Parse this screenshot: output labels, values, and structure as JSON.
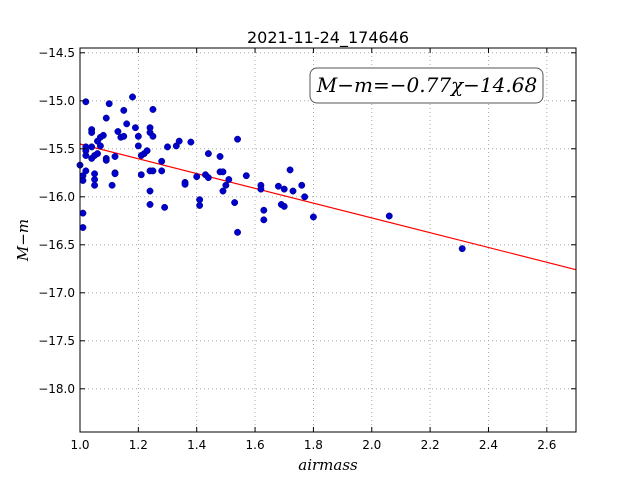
{
  "chart_data": {
    "type": "scatter",
    "title": "2021-11-24_174646",
    "xlabel": "airmass",
    "ylabel": "M−m",
    "xlim": [
      1.0,
      2.7
    ],
    "ylim": [
      -18.45,
      -14.45
    ],
    "y_inverted": true,
    "x_ticks": [
      "1.0",
      "1.2",
      "1.4",
      "1.6",
      "1.8",
      "2.0",
      "2.2",
      "2.4",
      "2.6"
    ],
    "y_ticks": [
      "−14.5",
      "−15.0",
      "−15.5",
      "−16.0",
      "−16.5",
      "−17.0",
      "−17.5",
      "−18.0"
    ],
    "grid": true,
    "annotation": "M−m=−0.77χ−14.68",
    "annotation_position": "top-right",
    "point_color": "#0000cc",
    "line_color": "#ff0000",
    "fit": {
      "slope": -0.77,
      "intercept": -14.68
    },
    "points": [
      [
        1.0,
        -15.67
      ],
      [
        1.01,
        -15.83
      ],
      [
        1.01,
        -15.78
      ],
      [
        1.01,
        -16.17
      ],
      [
        1.01,
        -16.32
      ],
      [
        1.02,
        -15.01
      ],
      [
        1.02,
        -15.48
      ],
      [
        1.02,
        -15.52
      ],
      [
        1.02,
        -15.57
      ],
      [
        1.02,
        -15.73
      ],
      [
        1.04,
        -15.3
      ],
      [
        1.04,
        -15.33
      ],
      [
        1.04,
        -15.48
      ],
      [
        1.04,
        -15.6
      ],
      [
        1.05,
        -15.57
      ],
      [
        1.05,
        -15.82
      ],
      [
        1.05,
        -15.88
      ],
      [
        1.05,
        -15.76
      ],
      [
        1.06,
        -15.42
      ],
      [
        1.06,
        -15.55
      ],
      [
        1.07,
        -15.38
      ],
      [
        1.07,
        -15.47
      ],
      [
        1.08,
        -15.36
      ],
      [
        1.09,
        -15.18
      ],
      [
        1.09,
        -15.6
      ],
      [
        1.09,
        -15.62
      ],
      [
        1.1,
        -15.03
      ],
      [
        1.11,
        -15.88
      ],
      [
        1.12,
        -15.58
      ],
      [
        1.12,
        -15.75
      ],
      [
        1.12,
        -15.76
      ],
      [
        1.13,
        -15.32
      ],
      [
        1.14,
        -15.38
      ],
      [
        1.15,
        -15.1
      ],
      [
        1.15,
        -15.37
      ],
      [
        1.16,
        -15.24
      ],
      [
        1.18,
        -14.96
      ],
      [
        1.19,
        -15.28
      ],
      [
        1.2,
        -15.37
      ],
      [
        1.2,
        -15.47
      ],
      [
        1.21,
        -15.57
      ],
      [
        1.21,
        -15.77
      ],
      [
        1.22,
        -15.55
      ],
      [
        1.23,
        -15.52
      ],
      [
        1.24,
        -15.28
      ],
      [
        1.24,
        -15.33
      ],
      [
        1.24,
        -15.73
      ],
      [
        1.24,
        -15.94
      ],
      [
        1.24,
        -16.08
      ],
      [
        1.25,
        -15.09
      ],
      [
        1.25,
        -15.37
      ],
      [
        1.25,
        -15.73
      ],
      [
        1.28,
        -15.63
      ],
      [
        1.28,
        -15.73
      ],
      [
        1.29,
        -16.11
      ],
      [
        1.3,
        -15.48
      ],
      [
        1.33,
        -15.47
      ],
      [
        1.34,
        -15.42
      ],
      [
        1.36,
        -15.85
      ],
      [
        1.36,
        -15.87
      ],
      [
        1.38,
        -15.43
      ],
      [
        1.4,
        -15.79
      ],
      [
        1.41,
        -16.03
      ],
      [
        1.41,
        -16.09
      ],
      [
        1.43,
        -15.77
      ],
      [
        1.44,
        -15.55
      ],
      [
        1.44,
        -15.8
      ],
      [
        1.48,
        -15.58
      ],
      [
        1.48,
        -15.74
      ],
      [
        1.49,
        -15.74
      ],
      [
        1.49,
        -15.94
      ],
      [
        1.5,
        -15.88
      ],
      [
        1.51,
        -15.82
      ],
      [
        1.53,
        -16.06
      ],
      [
        1.54,
        -15.4
      ],
      [
        1.54,
        -16.37
      ],
      [
        1.57,
        -15.78
      ],
      [
        1.62,
        -15.88
      ],
      [
        1.62,
        -15.92
      ],
      [
        1.63,
        -16.14
      ],
      [
        1.63,
        -16.24
      ],
      [
        1.68,
        -15.89
      ],
      [
        1.69,
        -16.08
      ],
      [
        1.7,
        -15.92
      ],
      [
        1.7,
        -16.1
      ],
      [
        1.72,
        -15.72
      ],
      [
        1.73,
        -15.94
      ],
      [
        1.76,
        -15.88
      ],
      [
        1.77,
        -16.0
      ],
      [
        1.8,
        -16.21
      ],
      [
        2.06,
        -16.2
      ],
      [
        2.31,
        -16.54
      ]
    ]
  }
}
